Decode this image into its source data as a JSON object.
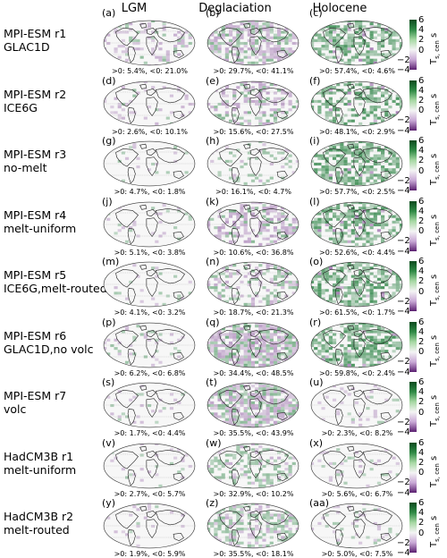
{
  "columns": [
    "LGM",
    "Deglaciation",
    "Holocene"
  ],
  "colors": {
    "positive": "#1a7a35",
    "negative": "#7b3c92",
    "land_outline": "#222222"
  },
  "colorbar": {
    "ticks": [
      "6",
      "4",
      "2",
      "0",
      "−2",
      "−4"
    ],
    "unit": "T",
    "unit_sub": "s, cen",
    "unit_suffix": "s"
  },
  "chart_data": {
    "type": "heatmap",
    "layout": "grid of global maps",
    "rows": [
      {
        "label_line1": "MPI-ESM r1",
        "label_line2": "GLAC1D",
        "panels": [
          {
            "letter": "(a)",
            "stat": ">0: 5.4%, <0: 21.0%",
            "pos": 5.4,
            "neg": 21.0,
            "intensity": 0.35
          },
          {
            "letter": "(b)",
            "stat": ">0: 29.7%, <0: 41.1%",
            "pos": 29.7,
            "neg": 41.1,
            "intensity": 0.45
          },
          {
            "letter": "(c)",
            "stat": ">0: 57.4%, <0: 4.6%",
            "pos": 57.4,
            "neg": 4.6,
            "intensity": 0.85
          }
        ]
      },
      {
        "label_line1": "MPI-ESM r2",
        "label_line2": "ICE6G",
        "panels": [
          {
            "letter": "(d)",
            "stat": ">0: 2.6%, <0: 10.1%",
            "pos": 2.6,
            "neg": 10.1,
            "intensity": 0.3
          },
          {
            "letter": "(e)",
            "stat": ">0: 15.6%, <0: 27.5%",
            "pos": 15.6,
            "neg": 27.5,
            "intensity": 0.5
          },
          {
            "letter": "(f)",
            "stat": ">0: 48.1%, <0: 2.9%",
            "pos": 48.1,
            "neg": 2.9,
            "intensity": 0.85
          }
        ]
      },
      {
        "label_line1": "MPI-ESM r3",
        "label_line2": "no-melt",
        "panels": [
          {
            "letter": "(g)",
            "stat": ">0: 4.7%, <0: 1.8%",
            "pos": 4.7,
            "neg": 1.8,
            "intensity": 0.2
          },
          {
            "letter": "(h)",
            "stat": ">0: 16.1%, <0: 4.7%",
            "pos": 16.1,
            "neg": 4.7,
            "intensity": 0.3
          },
          {
            "letter": "(i)",
            "stat": ">0: 57.7%, <0: 2.5%",
            "pos": 57.7,
            "neg": 2.5,
            "intensity": 0.85
          }
        ]
      },
      {
        "label_line1": "MPI-ESM r4",
        "label_line2": "melt-uniform",
        "panels": [
          {
            "letter": "(j)",
            "stat": ">0: 5.1%, <0: 3.8%",
            "pos": 5.1,
            "neg": 3.8,
            "intensity": 0.2
          },
          {
            "letter": "(k)",
            "stat": ">0: 10.6%, <0: 36.8%",
            "pos": 10.6,
            "neg": 36.8,
            "intensity": 0.55
          },
          {
            "letter": "(l)",
            "stat": ">0: 52.6%, <0: 4.4%",
            "pos": 52.6,
            "neg": 4.4,
            "intensity": 0.85
          }
        ]
      },
      {
        "label_line1": "MPI-ESM r5",
        "label_line2": "ICE6G,melt-routed",
        "panels": [
          {
            "letter": "(m)",
            "stat": ">0: 4.1%, <0: 3.2%",
            "pos": 4.1,
            "neg": 3.2,
            "intensity": 0.2
          },
          {
            "letter": "(n)",
            "stat": ">0: 18.7%, <0: 21.3%",
            "pos": 18.7,
            "neg": 21.3,
            "intensity": 0.4
          },
          {
            "letter": "(o)",
            "stat": ">0: 61.5%, <0: 1.7%",
            "pos": 61.5,
            "neg": 1.7,
            "intensity": 0.9
          }
        ]
      },
      {
        "label_line1": "MPI-ESM r6",
        "label_line2": "GLAC1D,no volc",
        "panels": [
          {
            "letter": "(p)",
            "stat": ">0: 6.2%, <0: 6.8%",
            "pos": 6.2,
            "neg": 6.8,
            "intensity": 0.25
          },
          {
            "letter": "(q)",
            "stat": ">0: 34.4%, <0: 48.5%",
            "pos": 34.4,
            "neg": 48.5,
            "intensity": 0.55
          },
          {
            "letter": "(r)",
            "stat": ">0: 59.8%, <0: 2.4%",
            "pos": 59.8,
            "neg": 2.4,
            "intensity": 0.9
          }
        ]
      },
      {
        "label_line1": "MPI-ESM r7",
        "label_line2": "volc",
        "panels": [
          {
            "letter": "(s)",
            "stat": ">0: 1.7%, <0: 4.4%",
            "pos": 1.7,
            "neg": 4.4,
            "intensity": 0.2
          },
          {
            "letter": "(t)",
            "stat": ">0: 35.5%, <0: 43.9%",
            "pos": 35.5,
            "neg": 43.9,
            "intensity": 0.5
          },
          {
            "letter": "(u)",
            "stat": ">0: 2.3%, <0: 8.2%",
            "pos": 2.3,
            "neg": 8.2,
            "intensity": 0.2
          }
        ]
      },
      {
        "label_line1": "HadCM3B r1",
        "label_line2": "melt-uniform",
        "panels": [
          {
            "letter": "(v)",
            "stat": ">0: 2.7%, <0: 5.7%",
            "pos": 2.7,
            "neg": 5.7,
            "intensity": 0.2
          },
          {
            "letter": "(w)",
            "stat": ">0: 32.9%, <0: 10.2%",
            "pos": 32.9,
            "neg": 10.2,
            "intensity": 0.35
          },
          {
            "letter": "(x)",
            "stat": ">0: 5.6%, <0: 6.7%",
            "pos": 5.6,
            "neg": 6.7,
            "intensity": 0.2
          }
        ]
      },
      {
        "label_line1": "HadCM3B r2",
        "label_line2": "melt-routed",
        "panels": [
          {
            "letter": "(y)",
            "stat": ">0: 1.9%, <0: 5.9%",
            "pos": 1.9,
            "neg": 5.9,
            "intensity": 0.2
          },
          {
            "letter": "(z)",
            "stat": ">0: 35.5%, <0: 18.1%",
            "pos": 35.5,
            "neg": 18.1,
            "intensity": 0.35
          },
          {
            "letter": "(aa)",
            "stat": ">0: 5.0%, <0: 7.5%",
            "pos": 5.0,
            "neg": 7.5,
            "intensity": 0.2
          }
        ]
      }
    ],
    "colorbar_range": [
      -4,
      6
    ]
  }
}
